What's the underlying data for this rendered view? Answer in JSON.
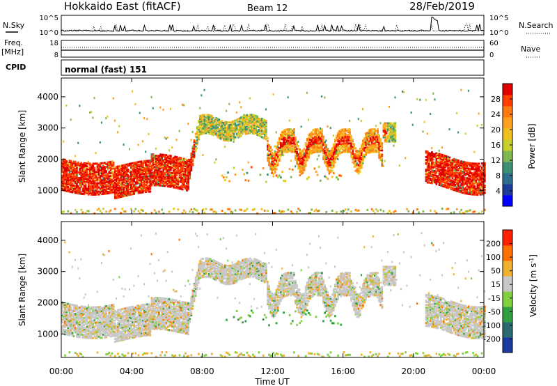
{
  "header": {
    "title": "Hokkaido East (fitACF)",
    "beam": "Beam 12",
    "date": "28/Feb/2019"
  },
  "noise_panel": {
    "left_label": "N.Sky",
    "right_label": "N.Search",
    "left_ticks": [
      "10^5",
      "10^0"
    ],
    "right_ticks": [
      "10^5",
      "10^0"
    ]
  },
  "freq_panel": {
    "left_label_1": "Freq.",
    "left_label_2": "[MHz]",
    "right_label": "Nave",
    "left_ticks": [
      "18",
      "8"
    ],
    "right_ticks": [
      "60",
      "0"
    ]
  },
  "cpid_panel": {
    "label": "CPID",
    "value": "normal (fast) 151"
  },
  "chart_data": [
    {
      "type": "heatmap",
      "name": "power",
      "ylabel": "Slant Range [km]",
      "yticks": [
        "4000",
        "3000",
        "2000",
        "1000"
      ],
      "ylim": [
        250,
        4600
      ],
      "colorbar_label": "Power [dB]",
      "colorbar_ticks": [
        "28",
        "24",
        "20",
        "16",
        "12",
        "8",
        "4"
      ],
      "colorbar_range": [
        0,
        32
      ],
      "colormap": [
        "#0000ff",
        "#1e3d9a",
        "#2e6e8e",
        "#3f8f72",
        "#7fb850",
        "#c8d030",
        "#f0c020",
        "#ffa020",
        "#ff7a10",
        "#ff4000",
        "#e00000"
      ]
    },
    {
      "type": "heatmap",
      "name": "velocity",
      "ylabel": "Slant Range [km]",
      "yticks": [
        "4000",
        "3000",
        "2000",
        "1000"
      ],
      "ylim": [
        250,
        4600
      ],
      "colorbar_label": "Velocity [m s",
      "colorbar_label_sup": "-1",
      "colorbar_label_end": "]",
      "colorbar_ticks": [
        "200",
        "100",
        "50",
        "15",
        "-15",
        "-50",
        "-100",
        "-200"
      ],
      "colormap": [
        "#1a3aa0",
        "#2a6a70",
        "#30a040",
        "#80d040",
        "#c8c8c8",
        "#f0b030",
        "#ff7000",
        "#ff2000"
      ]
    }
  ],
  "xaxis": {
    "label": "Time UT",
    "ticks": [
      "00:00",
      "04:00",
      "08:00",
      "12:00",
      "16:00",
      "20:00",
      "00:00"
    ]
  }
}
